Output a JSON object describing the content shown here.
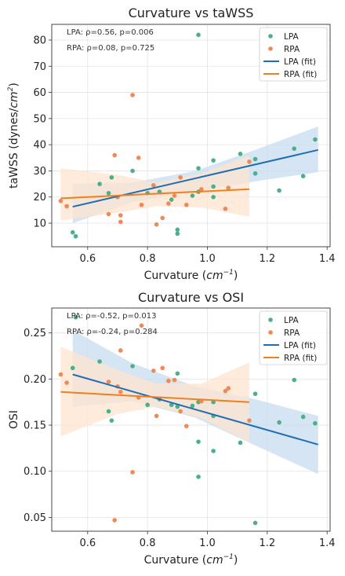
{
  "colors": {
    "lpa": "#4daf8a",
    "rpa": "#f08a55",
    "lpa_fit": "#1f6eb5",
    "rpa_fit": "#f07f1d",
    "lpa_band": "#c7dcef",
    "rpa_band": "#fde4cf"
  },
  "chart_data": [
    {
      "type": "scatter",
      "title": "Curvature vs taWSS",
      "xlabel": "Curvature (",
      "xlabel_unit": "cm",
      "xlabel_exp": "−1",
      "xlabel_close": ")",
      "ylabel": "taWSS (dynes/",
      "ylabel_unit": "cm",
      "ylabel_exp": "2",
      "ylabel_close": ")",
      "xlim": [
        0.48,
        1.41
      ],
      "ylim": [
        1,
        86
      ],
      "xticks": [
        "0.6",
        "0.8",
        "1.0",
        "1.2",
        "1.4"
      ],
      "xtick_values": [
        0.6,
        0.8,
        1.0,
        1.2,
        1.4
      ],
      "yticks": [
        "10",
        "20",
        "30",
        "40",
        "50",
        "60",
        "70",
        "80"
      ],
      "ytick_values": [
        10,
        20,
        30,
        40,
        50,
        60,
        70,
        80
      ],
      "grid": true,
      "legend_position": "top-right",
      "annotations": [
        "LPA: ρ=0.56, p=0.006",
        "RPA: ρ=0.08, p=0.725"
      ],
      "series": [
        {
          "name": "LPA",
          "kind": "points",
          "color_key": "lpa",
          "x": [
            0.55,
            0.56,
            0.64,
            0.67,
            0.68,
            0.75,
            0.8,
            0.84,
            0.88,
            0.9,
            0.9,
            0.95,
            0.97,
            0.97,
            0.97,
            1.02,
            1.02,
            1.02,
            1.11,
            1.16,
            1.16,
            1.24,
            1.29,
            1.32,
            1.36
          ],
          "y": [
            6.5,
            5.0,
            25.0,
            21.5,
            27.5,
            30.0,
            21.5,
            22.0,
            19.0,
            6.0,
            7.5,
            20.5,
            82.0,
            31.0,
            22.0,
            34.0,
            24.0,
            20.0,
            36.5,
            34.5,
            29.0,
            22.5,
            38.5,
            28.0,
            42.0
          ]
        },
        {
          "name": "RPA",
          "kind": "points",
          "color_key": "rpa",
          "x": [
            0.51,
            0.53,
            0.67,
            0.69,
            0.7,
            0.71,
            0.71,
            0.75,
            0.77,
            0.78,
            0.82,
            0.83,
            0.85,
            0.87,
            0.89,
            0.91,
            0.93,
            0.98,
            1.06,
            1.07,
            1.14
          ],
          "y": [
            18.5,
            16.5,
            13.5,
            36.0,
            20.0,
            13.0,
            10.5,
            59.0,
            35.0,
            17.0,
            24.5,
            9.5,
            12.0,
            17.5,
            20.5,
            27.5,
            17.0,
            23.0,
            15.5,
            23.5,
            33.5
          ]
        },
        {
          "name": "LPA (fit)",
          "kind": "fit",
          "color_key": "lpa_fit",
          "x": [
            0.55,
            1.37
          ],
          "y": [
            16.3,
            38.0
          ],
          "band_x": [
            0.55,
            0.75,
            0.96,
            1.16,
            1.37
          ],
          "band_lower": [
            10.0,
            18.0,
            22.0,
            26.0,
            29.5
          ],
          "band_upper": [
            25.0,
            25.5,
            30.0,
            38.0,
            47.0
          ]
        },
        {
          "name": "RPA (fit)",
          "kind": "fit",
          "color_key": "rpa_fit",
          "x": [
            0.51,
            1.14
          ],
          "y": [
            19.5,
            23.0
          ],
          "band_x": [
            0.51,
            0.7,
            0.83,
            0.98,
            1.14
          ],
          "band_lower": [
            11.0,
            14.0,
            16.5,
            16.0,
            12.5
          ],
          "band_upper": [
            31.0,
            28.5,
            25.5,
            29.0,
            36.0
          ]
        }
      ]
    },
    {
      "type": "scatter",
      "title": "Curvature vs OSI",
      "xlabel": "Curvature (",
      "xlabel_unit": "cm",
      "xlabel_exp": "−1",
      "xlabel_close": ")",
      "ylabel": "OSI",
      "ylabel_unit": "",
      "ylabel_exp": "",
      "ylabel_close": "",
      "xlim": [
        0.48,
        1.41
      ],
      "ylim": [
        0.035,
        0.277
      ],
      "xticks": [
        "0.6",
        "0.8",
        "1.0",
        "1.2",
        "1.4"
      ],
      "xtick_values": [
        0.6,
        0.8,
        1.0,
        1.2,
        1.4
      ],
      "yticks": [
        "0.05",
        "0.10",
        "0.15",
        "0.20",
        "0.25"
      ],
      "ytick_values": [
        0.05,
        0.1,
        0.15,
        0.2,
        0.25
      ],
      "grid": true,
      "legend_position": "top-right",
      "annotations": [
        "LPA: ρ=-0.52, p=0.013",
        "RPA: ρ=-0.24, p=0.284"
      ],
      "series": [
        {
          "name": "LPA",
          "kind": "points",
          "color_key": "lpa",
          "x": [
            0.55,
            0.56,
            0.64,
            0.67,
            0.68,
            0.75,
            0.8,
            0.84,
            0.88,
            0.9,
            0.9,
            0.95,
            0.97,
            0.97,
            0.97,
            1.02,
            1.02,
            1.02,
            1.11,
            1.16,
            1.16,
            1.24,
            1.29,
            1.32,
            1.36
          ],
          "y": [
            0.212,
            0.267,
            0.219,
            0.165,
            0.155,
            0.214,
            0.172,
            0.178,
            0.172,
            0.206,
            0.17,
            0.171,
            0.094,
            0.132,
            0.175,
            0.122,
            0.16,
            0.175,
            0.131,
            0.044,
            0.184,
            0.153,
            0.199,
            0.159,
            0.152
          ]
        },
        {
          "name": "RPA",
          "kind": "points",
          "color_key": "rpa",
          "x": [
            0.51,
            0.53,
            0.67,
            0.69,
            0.7,
            0.71,
            0.71,
            0.75,
            0.77,
            0.78,
            0.82,
            0.83,
            0.85,
            0.87,
            0.89,
            0.91,
            0.93,
            0.98,
            1.06,
            1.07,
            1.14
          ],
          "y": [
            0.205,
            0.196,
            0.197,
            0.047,
            0.192,
            0.231,
            0.186,
            0.099,
            0.18,
            0.258,
            0.209,
            0.16,
            0.212,
            0.198,
            0.199,
            0.165,
            0.149,
            0.176,
            0.187,
            0.19,
            0.155
          ]
        },
        {
          "name": "LPA (fit)",
          "kind": "fit",
          "color_key": "lpa_fit",
          "x": [
            0.55,
            1.37
          ],
          "y": [
            0.205,
            0.129
          ],
          "band_x": [
            0.55,
            0.75,
            0.96,
            1.16,
            1.37
          ],
          "band_lower": [
            0.17,
            0.176,
            0.158,
            0.128,
            0.097
          ],
          "band_upper": [
            0.253,
            0.217,
            0.192,
            0.178,
            0.16
          ]
        },
        {
          "name": "RPA (fit)",
          "kind": "fit",
          "color_key": "rpa_fit",
          "x": [
            0.51,
            1.14
          ],
          "y": [
            0.186,
            0.175
          ],
          "band_x": [
            0.51,
            0.7,
            0.83,
            0.98,
            1.14
          ],
          "band_lower": [
            0.138,
            0.162,
            0.17,
            0.158,
            0.131
          ],
          "band_upper": [
            0.235,
            0.21,
            0.195,
            0.195,
            0.218
          ]
        }
      ]
    }
  ]
}
